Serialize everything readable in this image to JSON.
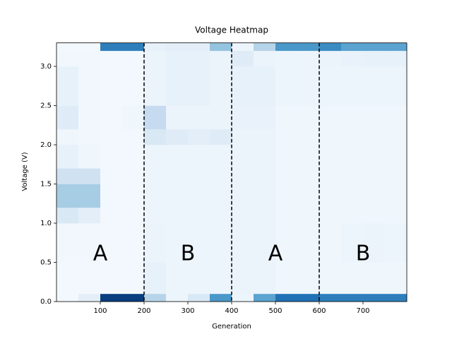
{
  "chart_data": {
    "type": "heatmap",
    "title": "Voltage Heatmap",
    "x_label": "Generation",
    "y_label": "Voltage (V)",
    "xbins": [
      0,
      50,
      100,
      150,
      200,
      250,
      300,
      350,
      400,
      450,
      500,
      550,
      600,
      650,
      700,
      750,
      800
    ],
    "ybins": [
      0,
      0.1,
      0.5,
      1.0,
      1.2,
      1.5,
      1.7,
      2.0,
      2.2,
      2.5,
      3.0,
      3.2,
      3.3
    ],
    "values": [
      [
        0.02,
        0.1,
        0.95,
        0.95,
        0.3,
        0.05,
        0.15,
        0.6,
        0.05,
        0.55,
        0.75,
        0.75,
        0.7,
        0.7,
        0.7,
        0.7
      ],
      [
        0.02,
        0.02,
        0.02,
        0.02,
        0.08,
        0.05,
        0.05,
        0.05,
        0.06,
        0.06,
        0.04,
        0.04,
        0.04,
        0.04,
        0.04,
        0.04
      ],
      [
        0.03,
        0.03,
        0.02,
        0.02,
        0.06,
        0.05,
        0.05,
        0.05,
        0.06,
        0.06,
        0.04,
        0.04,
        0.04,
        0.05,
        0.06,
        0.05
      ],
      [
        0.15,
        0.1,
        0.02,
        0.02,
        0.05,
        0.05,
        0.05,
        0.05,
        0.06,
        0.06,
        0.04,
        0.04,
        0.04,
        0.04,
        0.04,
        0.04
      ],
      [
        0.35,
        0.35,
        0.02,
        0.02,
        0.05,
        0.05,
        0.05,
        0.05,
        0.06,
        0.06,
        0.04,
        0.04,
        0.04,
        0.04,
        0.04,
        0.04
      ],
      [
        0.2,
        0.2,
        0.02,
        0.02,
        0.05,
        0.05,
        0.05,
        0.05,
        0.06,
        0.06,
        0.04,
        0.04,
        0.04,
        0.04,
        0.04,
        0.04
      ],
      [
        0.08,
        0.04,
        0.02,
        0.02,
        0.05,
        0.05,
        0.05,
        0.05,
        0.06,
        0.06,
        0.04,
        0.04,
        0.04,
        0.04,
        0.04,
        0.04
      ],
      [
        0.04,
        0.03,
        0.02,
        0.02,
        0.15,
        0.12,
        0.1,
        0.12,
        0.06,
        0.06,
        0.04,
        0.04,
        0.04,
        0.04,
        0.04,
        0.04
      ],
      [
        0.12,
        0.03,
        0.02,
        0.04,
        0.25,
        0.06,
        0.06,
        0.06,
        0.07,
        0.07,
        0.04,
        0.04,
        0.04,
        0.04,
        0.04,
        0.04
      ],
      [
        0.08,
        0.03,
        0.02,
        0.02,
        0.06,
        0.08,
        0.08,
        0.06,
        0.08,
        0.08,
        0.05,
        0.05,
        0.05,
        0.05,
        0.05,
        0.05
      ],
      [
        0.03,
        0.03,
        0.02,
        0.02,
        0.06,
        0.08,
        0.08,
        0.06,
        0.12,
        0.06,
        0.05,
        0.05,
        0.06,
        0.07,
        0.08,
        0.08
      ],
      [
        0.02,
        0.02,
        0.7,
        0.7,
        0.08,
        0.1,
        0.1,
        0.4,
        0.05,
        0.3,
        0.6,
        0.6,
        0.65,
        0.55,
        0.55,
        0.55
      ]
    ],
    "colormap": [
      "#f7fbff",
      "#deebf7",
      "#c6dbef",
      "#9ecae1",
      "#6baed6",
      "#4292c6",
      "#2171b5",
      "#08519c",
      "#08306b"
    ],
    "vlines": [
      200,
      400,
      600
    ],
    "annotations": [
      "A",
      "B",
      "A",
      "B"
    ],
    "xlim": [
      0,
      800
    ],
    "ylim": [
      0,
      3.3
    ],
    "xticks": [
      100,
      200,
      300,
      400,
      500,
      600,
      700
    ],
    "yticks": [
      {
        "value": 0,
        "label": "0.0"
      },
      0.5,
      {
        "value": 1,
        "label": "1.0"
      },
      1.5,
      {
        "value": 2,
        "label": "2.0"
      },
      2.5,
      {
        "value": 3,
        "label": "3.0"
      }
    ]
  }
}
